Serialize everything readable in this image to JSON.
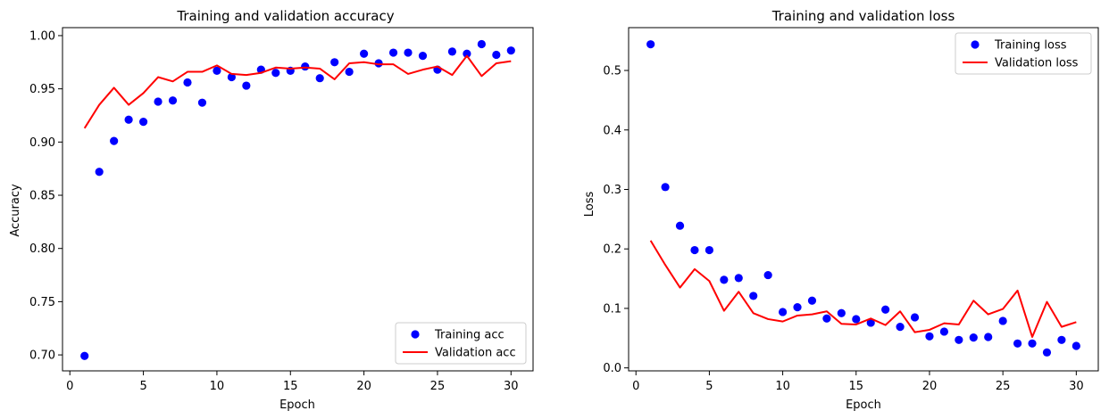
{
  "colors": {
    "training": "#0000ff",
    "validation": "#ff0000",
    "frame": "#000000",
    "legend_border": "#cccccc"
  },
  "chart_data": [
    {
      "type": "line",
      "title": "Training and validation accuracy",
      "xlabel": "Epoch",
      "ylabel": "Accuracy",
      "xlim": [
        -0.5,
        31.5
      ],
      "ylim": [
        0.685,
        1.0075
      ],
      "xticks": [
        0,
        5,
        10,
        15,
        20,
        25,
        30
      ],
      "yticks": [
        0.7,
        0.75,
        0.8,
        0.85,
        0.9,
        0.95,
        1.0
      ],
      "ytick_labels": [
        "0.70",
        "0.75",
        "0.80",
        "0.85",
        "0.90",
        "0.95",
        "1.00"
      ],
      "grid": false,
      "legend_position": "lower-right",
      "x": [
        1,
        2,
        3,
        4,
        5,
        6,
        7,
        8,
        9,
        10,
        11,
        12,
        13,
        14,
        15,
        16,
        17,
        18,
        19,
        20,
        21,
        22,
        23,
        24,
        25,
        26,
        27,
        28,
        29,
        30
      ],
      "series": [
        {
          "name": "Training acc",
          "style": "markers",
          "values": [
            0.699,
            0.872,
            0.901,
            0.921,
            0.919,
            0.938,
            0.939,
            0.956,
            0.937,
            0.967,
            0.961,
            0.953,
            0.968,
            0.965,
            0.967,
            0.971,
            0.96,
            0.975,
            0.966,
            0.983,
            0.974,
            0.984,
            0.984,
            0.981,
            0.968,
            0.985,
            0.983,
            0.992,
            0.982,
            0.986
          ]
        },
        {
          "name": "Validation acc",
          "style": "line",
          "values": [
            0.913,
            0.935,
            0.951,
            0.935,
            0.946,
            0.961,
            0.957,
            0.966,
            0.966,
            0.972,
            0.964,
            0.963,
            0.965,
            0.97,
            0.969,
            0.97,
            0.969,
            0.959,
            0.974,
            0.975,
            0.973,
            0.973,
            0.964,
            0.968,
            0.971,
            0.963,
            0.981,
            0.962,
            0.974,
            0.976
          ]
        }
      ]
    },
    {
      "type": "line",
      "title": "Training and validation loss",
      "xlabel": "Epoch",
      "ylabel": "Loss",
      "xlim": [
        -0.5,
        31.5
      ],
      "ylim": [
        -0.005,
        0.572
      ],
      "xticks": [
        0,
        5,
        10,
        15,
        20,
        25,
        30
      ],
      "yticks": [
        0.0,
        0.1,
        0.2,
        0.3,
        0.4,
        0.5
      ],
      "ytick_labels": [
        "0.0",
        "0.1",
        "0.2",
        "0.3",
        "0.4",
        "0.5"
      ],
      "grid": false,
      "legend_position": "upper-right",
      "x": [
        1,
        2,
        3,
        4,
        5,
        6,
        7,
        8,
        9,
        10,
        11,
        12,
        13,
        14,
        15,
        16,
        17,
        18,
        19,
        20,
        21,
        22,
        23,
        24,
        25,
        26,
        27,
        28,
        29,
        30
      ],
      "series": [
        {
          "name": "Training loss",
          "style": "markers",
          "values": [
            0.544,
            0.304,
            0.239,
            0.198,
            0.198,
            0.148,
            0.151,
            0.121,
            0.156,
            0.094,
            0.102,
            0.113,
            0.083,
            0.092,
            0.082,
            0.076,
            0.098,
            0.069,
            0.085,
            0.053,
            0.061,
            0.047,
            0.051,
            0.052,
            0.079,
            0.041,
            0.041,
            0.026,
            0.047,
            0.037
          ]
        },
        {
          "name": "Validation loss",
          "style": "line",
          "values": [
            0.214,
            0.173,
            0.135,
            0.166,
            0.146,
            0.096,
            0.128,
            0.092,
            0.082,
            0.078,
            0.088,
            0.09,
            0.095,
            0.074,
            0.073,
            0.083,
            0.072,
            0.095,
            0.06,
            0.064,
            0.075,
            0.073,
            0.113,
            0.09,
            0.099,
            0.13,
            0.052,
            0.111,
            0.069,
            0.077
          ]
        }
      ]
    }
  ]
}
